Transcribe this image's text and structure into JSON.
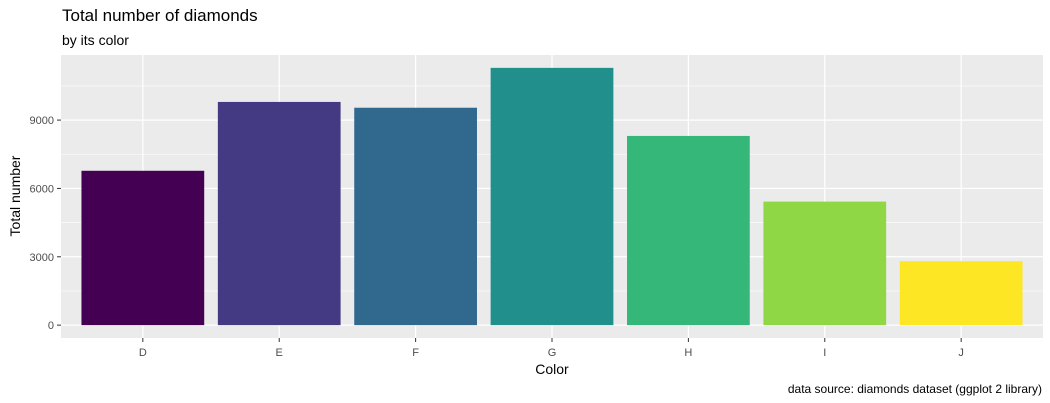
{
  "chart_data": {
    "type": "bar",
    "title": "Total number of diamonds",
    "subtitle": "by its color",
    "caption": "data source: diamonds dataset (ggplot 2 library)",
    "xlabel": "Color",
    "ylabel": "Total number",
    "categories": [
      "D",
      "E",
      "F",
      "G",
      "H",
      "I",
      "J"
    ],
    "values": [
      6775,
      9797,
      9542,
      11292,
      8304,
      5422,
      2808
    ],
    "colors": [
      "#440154",
      "#443A83",
      "#31688E",
      "#21908C",
      "#35B779",
      "#8FD744",
      "#FDE725"
    ],
    "yticks": [
      0,
      3000,
      6000,
      9000
    ],
    "ylim": [
      -565,
      11857
    ],
    "grid": true,
    "panel_background": "#EBEBEB",
    "legend": "none"
  }
}
